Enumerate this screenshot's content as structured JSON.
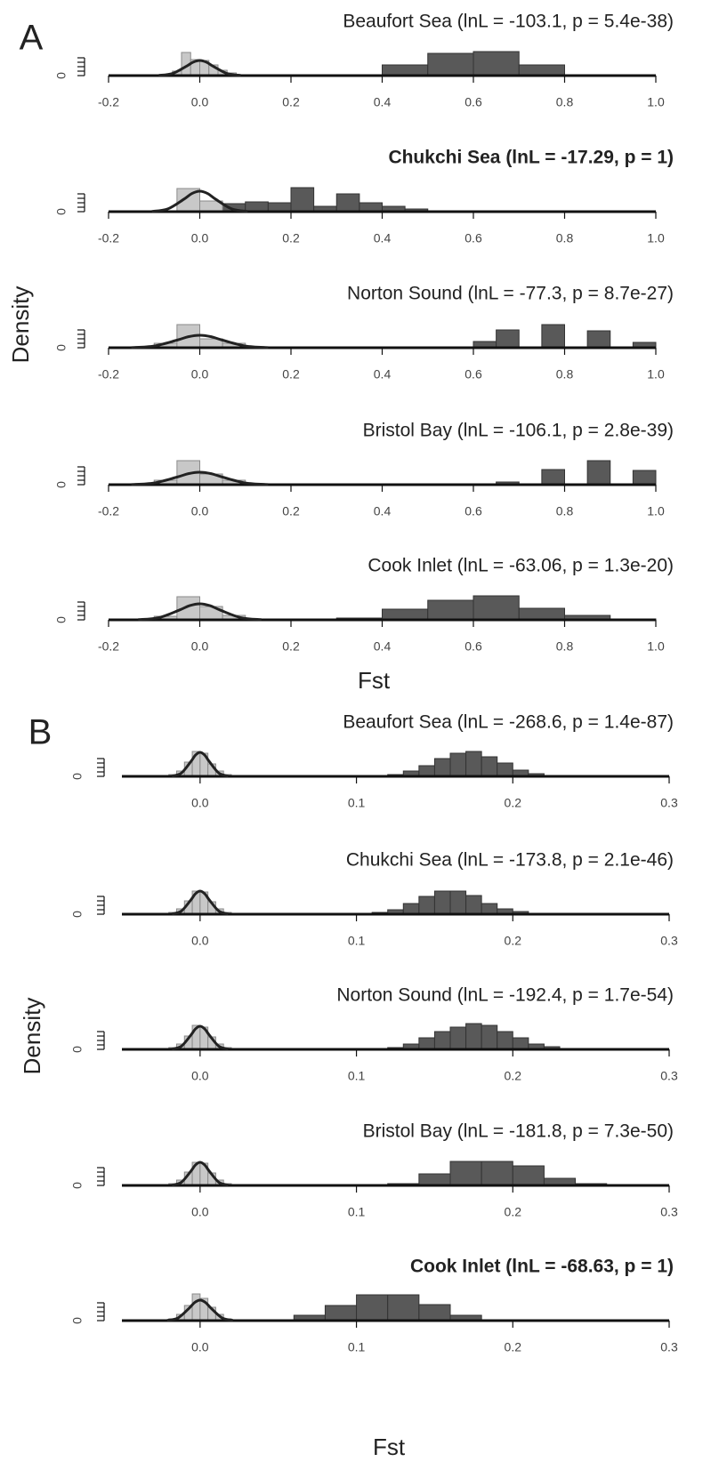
{
  "figure": {
    "panels": [
      {
        "label": "A",
        "ylabel": "Density",
        "xlabel": "Fst"
      },
      {
        "label": "B",
        "ylabel": "Density",
        "xlabel": "Fst"
      }
    ]
  },
  "chart_data": [
    {
      "type": "histogram",
      "title": "Beaufort Sea (lnL = -103.1, p = 5.4e-38)",
      "title_bold": false,
      "xlim": [
        -0.2,
        1.0
      ],
      "xticks": [
        -0.2,
        {
          "value": 0,
          "label": "0.0"
        },
        0.2,
        0.4,
        0.6,
        0.8,
        {
          "value": 1,
          "label": "1.0"
        }
      ],
      "ylim": [
        0,
        6
      ],
      "yticks": [
        0,
        {
          "value": 1,
          "label": null
        },
        {
          "value": 2,
          "label": null
        },
        {
          "value": 3,
          "label": null
        },
        {
          "value": 4,
          "label": null
        }
      ],
      "series": [
        {
          "color": "#595959",
          "bins": [
            0.3,
            0.4,
            0.5,
            0.6,
            0.7,
            0.8
          ],
          "values": [
            0.2,
            2.4,
            5,
            5.4,
            2.4
          ]
        },
        {
          "color": "#c8c8c8",
          "bins": [
            -0.06,
            -0.04,
            -0.02,
            0,
            0.02,
            0.04,
            0.06,
            0.08
          ],
          "values": [
            1,
            5.2,
            3.6,
            3.4,
            2.4,
            1.2,
            0.6
          ]
        },
        {
          "type": "line",
          "color": "#222222",
          "x": [
            -0.09,
            -0.06,
            -0.03,
            -0.015,
            0,
            0.015,
            0.03,
            0.06,
            0.09
          ],
          "values": [
            0.04,
            0.46,
            2.06,
            3,
            3.4,
            3,
            2.06,
            0.46,
            0.04
          ]
        }
      ]
    },
    {
      "type": "histogram",
      "title": "Chukchi Sea (lnL = -17.29, p = 1)",
      "title_bold": true,
      "xlim": [
        -0.2,
        1.0
      ],
      "xticks": [
        -0.2,
        {
          "value": 0,
          "label": "0.0"
        },
        0.2,
        0.4,
        0.6,
        0.8,
        {
          "value": 1,
          "label": "1.0"
        }
      ],
      "ylim": [
        0,
        6
      ],
      "yticks": [
        0,
        {
          "value": 1,
          "label": null
        },
        {
          "value": 2,
          "label": null
        },
        {
          "value": 3,
          "label": null
        },
        {
          "value": 4,
          "label": null
        }
      ],
      "series": [
        {
          "color": "#595959",
          "bins": [
            0.05,
            0.1,
            0.15,
            0.2,
            0.25,
            0.3,
            0.35,
            0.4,
            0.45,
            0.5
          ],
          "values": [
            1.8,
            2.2,
            2,
            5.4,
            1.2,
            4,
            2,
            1.2,
            0.6
          ]
        },
        {
          "color": "#c8c8c8",
          "bins": [
            -0.05,
            0,
            0.05
          ],
          "values": [
            5.2,
            2.4
          ]
        },
        {
          "type": "line",
          "color": "#222222",
          "x": [
            -0.105,
            -0.07,
            -0.035,
            -0.0175,
            0,
            0.0175,
            0.035,
            0.07,
            0.105
          ],
          "values": [
            0.05,
            0.62,
            2.79,
            4.06,
            4.6,
            4.06,
            2.79,
            0.62,
            0.05
          ]
        }
      ]
    },
    {
      "type": "histogram",
      "title": "Norton Sound (lnL = -77.3, p = 8.7e-27)",
      "title_bold": false,
      "xlim": [
        -0.2,
        1.0
      ],
      "xticks": [
        -0.2,
        {
          "value": 0,
          "label": "0.0"
        },
        0.2,
        0.4,
        0.6,
        0.8,
        {
          "value": 1,
          "label": "1.0"
        }
      ],
      "ylim": [
        0,
        6
      ],
      "yticks": [
        0,
        {
          "value": 1,
          "label": null
        },
        {
          "value": 2,
          "label": null
        },
        {
          "value": 3,
          "label": null
        },
        {
          "value": 4,
          "label": null
        }
      ],
      "series": [
        {
          "color": "#595959",
          "bins": [
            0.6,
            0.65,
            0.7,
            0.75,
            0.8,
            0.85,
            0.9,
            0.95,
            1.0
          ],
          "values": [
            1.4,
            4,
            0,
            5.2,
            0,
            3.8,
            0,
            1.2
          ]
        },
        {
          "color": "#c8c8c8",
          "bins": [
            -0.1,
            -0.05,
            0,
            0.05,
            0.1
          ],
          "values": [
            1,
            5.2,
            2,
            1
          ]
        },
        {
          "type": "line",
          "color": "#222222",
          "x": [
            -0.15,
            -0.1,
            -0.05,
            -0.025,
            0,
            0.025,
            0.05,
            0.1,
            0.15
          ],
          "values": [
            0.03,
            0.38,
            1.7,
            2.47,
            2.8,
            2.47,
            1.7,
            0.38,
            0.03
          ]
        }
      ]
    },
    {
      "type": "histogram",
      "title": "Bristol Bay (lnL = -106.1, p = 2.8e-39)",
      "title_bold": false,
      "xlim": [
        -0.2,
        1.0
      ],
      "xticks": [
        -0.2,
        {
          "value": 0,
          "label": "0.0"
        },
        0.2,
        0.4,
        0.6,
        0.8,
        {
          "value": 1,
          "label": "1.0"
        }
      ],
      "ylim": [
        0,
        6
      ],
      "yticks": [
        0,
        {
          "value": 1,
          "label": null
        },
        {
          "value": 2,
          "label": null
        },
        {
          "value": 3,
          "label": null
        },
        {
          "value": 4,
          "label": null
        }
      ],
      "series": [
        {
          "color": "#595959",
          "bins": [
            0.65,
            0.7,
            0.75,
            0.8,
            0.85,
            0.9,
            0.95,
            1.0
          ],
          "values": [
            0.6,
            0,
            3.4,
            0,
            5.4,
            0,
            3.2
          ]
        },
        {
          "color": "#c8c8c8",
          "bins": [
            -0.1,
            -0.05,
            0,
            0.05,
            0.1
          ],
          "values": [
            1,
            5.4,
            2.4,
            1
          ]
        },
        {
          "type": "line",
          "color": "#222222",
          "x": [
            -0.15,
            -0.1,
            -0.05,
            -0.025,
            0,
            0.025,
            0.05,
            0.1,
            0.15
          ],
          "values": [
            0.03,
            0.38,
            1.7,
            2.47,
            2.8,
            2.47,
            1.7,
            0.38,
            0.03
          ]
        }
      ]
    },
    {
      "type": "histogram",
      "title": "Cook Inlet (lnL = -63.06, p = 1.3e-20)",
      "title_bold": false,
      "xlim": [
        -0.2,
        1.0
      ],
      "xticks": [
        -0.2,
        {
          "value": 0,
          "label": "0.0"
        },
        0.2,
        0.4,
        0.6,
        0.8,
        {
          "value": 1,
          "label": "1.0"
        }
      ],
      "ylim": [
        0,
        6
      ],
      "yticks": [
        0,
        {
          "value": 1,
          "label": null
        },
        {
          "value": 2,
          "label": null
        },
        {
          "value": 3,
          "label": null
        },
        {
          "value": 4,
          "label": null
        }
      ],
      "series": [
        {
          "color": "#595959",
          "bins": [
            0.3,
            0.4,
            0.5,
            0.6,
            0.7,
            0.8,
            0.9,
            1.0
          ],
          "values": [
            0.4,
            2.4,
            4.4,
            5.4,
            2.6,
            1,
            0.2
          ]
        },
        {
          "color": "#c8c8c8",
          "bins": [
            -0.1,
            -0.05,
            0,
            0.05,
            0.1
          ],
          "values": [
            0.8,
            5.2,
            3,
            1
          ]
        },
        {
          "type": "line",
          "color": "#222222",
          "x": [
            -0.135,
            -0.09,
            -0.045,
            -0.0225,
            0,
            0.0225,
            0.045,
            0.09,
            0.135
          ],
          "values": [
            0.04,
            0.49,
            2.19,
            3.18,
            3.6,
            3.18,
            2.19,
            0.49,
            0.04
          ]
        }
      ]
    },
    {
      "type": "histogram",
      "title": "Beaufort Sea (lnL = -268.6, p = 1.4e-87)",
      "title_bold": false,
      "xlim": [
        -0.05,
        0.3
      ],
      "xticks": [
        {
          "value": 0,
          "label": "0.0"
        },
        0.1,
        0.2,
        0.3
      ],
      "ylim": [
        0,
        6
      ],
      "yticks": [
        0,
        {
          "value": 1,
          "label": null
        },
        {
          "value": 2,
          "label": null
        },
        {
          "value": 3,
          "label": null
        },
        {
          "value": 4,
          "label": null
        }
      ],
      "series": [
        {
          "color": "#595959",
          "bins": [
            0.12,
            0.13,
            0.14,
            0.15,
            0.16,
            0.17,
            0.18,
            0.19,
            0.2,
            0.21,
            0.22
          ],
          "values": [
            0.4,
            1.2,
            2.4,
            4,
            5.2,
            5.6,
            4.4,
            3,
            1.4,
            0.6
          ]
        },
        {
          "color": "#c8c8c8",
          "bins": [
            -0.02,
            -0.015,
            -0.01,
            -0.005,
            0,
            0.005,
            0.01,
            0.015,
            0.02
          ],
          "values": [
            0.4,
            1.2,
            3.2,
            5.6,
            5.2,
            2.8,
            1.2,
            0.4
          ]
        },
        {
          "type": "line",
          "color": "#222222",
          "x": [
            -0.018,
            -0.012,
            -0.006,
            -0.003,
            0,
            0.003,
            0.006,
            0.012,
            0.018
          ],
          "values": [
            0.06,
            0.73,
            3.28,
            4.76,
            5.4,
            4.76,
            3.28,
            0.73,
            0.06
          ]
        }
      ]
    },
    {
      "type": "histogram",
      "title": "Chukchi Sea (lnL = -173.8, p = 2.1e-46)",
      "title_bold": false,
      "xlim": [
        -0.05,
        0.3
      ],
      "xticks": [
        {
          "value": 0,
          "label": "0.0"
        },
        0.1,
        0.2,
        0.3
      ],
      "ylim": [
        0,
        6
      ],
      "yticks": [
        0,
        {
          "value": 1,
          "label": null
        },
        {
          "value": 2,
          "label": null
        },
        {
          "value": 3,
          "label": null
        },
        {
          "value": 4,
          "label": null
        }
      ],
      "series": [
        {
          "color": "#595959",
          "bins": [
            0.11,
            0.12,
            0.13,
            0.14,
            0.15,
            0.16,
            0.17,
            0.18,
            0.19,
            0.2,
            0.21
          ],
          "values": [
            0.4,
            1,
            2.4,
            4,
            5.2,
            5.2,
            4.2,
            2.4,
            1.2,
            0.6
          ]
        },
        {
          "color": "#c8c8c8",
          "bins": [
            -0.02,
            -0.015,
            -0.01,
            -0.005,
            0,
            0.005,
            0.01,
            0.015,
            0.02
          ],
          "values": [
            0.4,
            1.2,
            3,
            5.2,
            5,
            2.8,
            1.2,
            0.4
          ]
        },
        {
          "type": "line",
          "color": "#222222",
          "x": [
            -0.018,
            -0.012,
            -0.006,
            -0.003,
            0,
            0.003,
            0.006,
            0.012,
            0.018
          ],
          "values": [
            0.06,
            0.7,
            3.16,
            4.59,
            5.2,
            4.59,
            3.16,
            0.7,
            0.06
          ]
        }
      ]
    },
    {
      "type": "histogram",
      "title": "Norton Sound (lnL = -192.4, p = 1.7e-54)",
      "title_bold": false,
      "xlim": [
        -0.05,
        0.3
      ],
      "xticks": [
        {
          "value": 0,
          "label": "0.0"
        },
        0.1,
        0.2,
        0.3
      ],
      "ylim": [
        0,
        6
      ],
      "yticks": [
        0,
        {
          "value": 1,
          "label": null
        },
        {
          "value": 2,
          "label": null
        },
        {
          "value": 3,
          "label": null
        },
        {
          "value": 4,
          "label": null
        }
      ],
      "series": [
        {
          "color": "#595959",
          "bins": [
            0.12,
            0.13,
            0.14,
            0.15,
            0.16,
            0.17,
            0.18,
            0.19,
            0.2,
            0.21,
            0.22,
            0.23
          ],
          "values": [
            0.4,
            1.2,
            2.6,
            4,
            5,
            5.8,
            5.4,
            4,
            2.6,
            1.2,
            0.6
          ]
        },
        {
          "color": "#c8c8c8",
          "bins": [
            -0.02,
            -0.015,
            -0.01,
            -0.005,
            0,
            0.005,
            0.01,
            0.015,
            0.02
          ],
          "values": [
            0.4,
            1.2,
            3,
            5.4,
            5,
            2.8,
            1.2,
            0.4
          ]
        },
        {
          "type": "line",
          "color": "#222222",
          "x": [
            -0.018,
            -0.012,
            -0.006,
            -0.003,
            0,
            0.003,
            0.006,
            0.012,
            0.018
          ],
          "values": [
            0.06,
            0.7,
            3.16,
            4.59,
            5.2,
            4.59,
            3.16,
            0.7,
            0.06
          ]
        }
      ]
    },
    {
      "type": "histogram",
      "title": "Bristol Bay (lnL = -181.8, p = 7.3e-50)",
      "title_bold": false,
      "xlim": [
        -0.05,
        0.3
      ],
      "xticks": [
        {
          "value": 0,
          "label": "0.0"
        },
        0.1,
        0.2,
        0.3
      ],
      "ylim": [
        0,
        6
      ],
      "yticks": [
        0,
        {
          "value": 1,
          "label": null
        },
        {
          "value": 2,
          "label": null
        },
        {
          "value": 3,
          "label": null
        },
        {
          "value": 4,
          "label": null
        }
      ],
      "series": [
        {
          "color": "#595959",
          "bins": [
            0.12,
            0.14,
            0.16,
            0.18,
            0.2,
            0.22,
            0.24,
            0.26
          ],
          "values": [
            0.4,
            2.6,
            5.4,
            5.4,
            4.4,
            1.6,
            0.4
          ]
        },
        {
          "color": "#c8c8c8",
          "bins": [
            -0.02,
            -0.015,
            -0.01,
            -0.005,
            0,
            0.005,
            0.01,
            0.015,
            0.02
          ],
          "values": [
            0.4,
            1.2,
            3,
            5.2,
            5,
            2.8,
            1.2,
            0.4
          ]
        },
        {
          "type": "line",
          "color": "#222222",
          "x": [
            -0.018,
            -0.012,
            -0.006,
            -0.003,
            0,
            0.003,
            0.006,
            0.012,
            0.018
          ],
          "values": [
            0.06,
            0.7,
            3.16,
            4.59,
            5.2,
            4.59,
            3.16,
            0.7,
            0.06
          ]
        }
      ]
    },
    {
      "type": "histogram",
      "title": "Cook Inlet (lnL = -68.63, p = 1)",
      "title_bold": true,
      "xlim": [
        -0.05,
        0.3
      ],
      "xticks": [
        {
          "value": 0,
          "label": "0.0"
        },
        0.1,
        0.2,
        0.3
      ],
      "ylim": [
        0,
        6
      ],
      "yticks": [
        0,
        {
          "value": 1,
          "label": null
        },
        {
          "value": 2,
          "label": null
        },
        {
          "value": 3,
          "label": null
        },
        {
          "value": 4,
          "label": null
        }
      ],
      "series": [
        {
          "color": "#595959",
          "bins": [
            0.04,
            0.06,
            0.08,
            0.1,
            0.12,
            0.14,
            0.16,
            0.18
          ],
          "values": [
            0.2,
            1.2,
            3.4,
            5.8,
            5.8,
            3.6,
            1.2
          ]
        },
        {
          "color": "#c8c8c8",
          "bins": [
            -0.02,
            -0.015,
            -0.01,
            -0.005,
            0,
            0.005,
            0.01,
            0.015,
            0.02
          ],
          "values": [
            0.4,
            1.4,
            3.4,
            6,
            5,
            3,
            1.4,
            0.4
          ]
        },
        {
          "type": "line",
          "color": "#222222",
          "x": [
            -0.021,
            -0.014,
            -0.007,
            -0.0035,
            0,
            0.0035,
            0.007,
            0.014,
            0.021
          ],
          "values": [
            0.05,
            0.62,
            2.79,
            4.06,
            4.6,
            4.06,
            2.79,
            0.62,
            0.05
          ]
        }
      ]
    }
  ]
}
